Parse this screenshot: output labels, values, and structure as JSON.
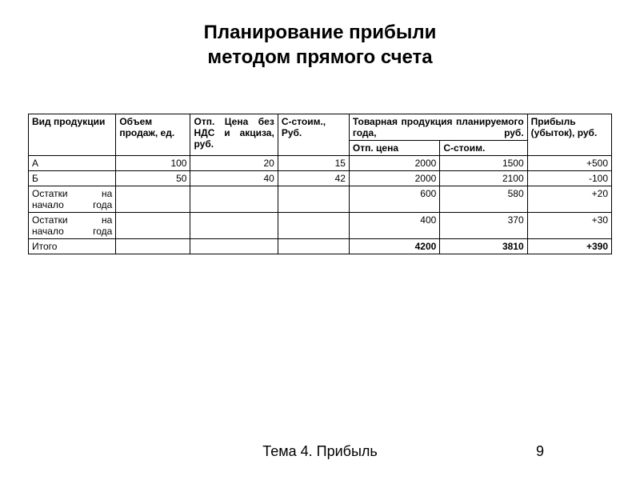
{
  "title_line1": "Планирование прибыли",
  "title_line2": "методом прямого счета",
  "headers": {
    "product": "Вид продукции",
    "volume": "Объем продаж, ед.",
    "price": "Отп. Цена без НДС и акциза, руб.",
    "cost": "С-стоим., Руб.",
    "goods_header": "Товарная продукция планируемого года, руб.",
    "otp_price": "Отп. цена",
    "sstoim": "С-стоим.",
    "profit": "Прибыль (убыток), руб."
  },
  "rows": [
    {
      "product": "А",
      "volume": "100",
      "price": "20",
      "cost": "15",
      "otp": "2000",
      "sstoim": "1500",
      "profit": "+500"
    },
    {
      "product": "Б",
      "volume": "50",
      "price": "40",
      "cost": "42",
      "otp": "2000",
      "sstoim": "2100",
      "profit": "-100"
    },
    {
      "product": "Остатки на начало года",
      "volume": "",
      "price": "",
      "cost": "",
      "otp": "600",
      "sstoim": "580",
      "profit": "+20"
    },
    {
      "product": "Остатки на начало года",
      "volume": "",
      "price": "",
      "cost": "",
      "otp": "400",
      "sstoim": "370",
      "profit": "+30"
    },
    {
      "product": "Итого",
      "volume": "",
      "price": "",
      "cost": "",
      "otp": "4200",
      "sstoim": "3810",
      "profit": "+390"
    }
  ],
  "footer": "Тема 4. Прибыль",
  "page_number": "9",
  "colors": {
    "background": "#ffffff",
    "text": "#000000",
    "border": "#000000"
  },
  "fonts": {
    "title_size": 24,
    "table_size": 12,
    "footer_size": 18
  }
}
